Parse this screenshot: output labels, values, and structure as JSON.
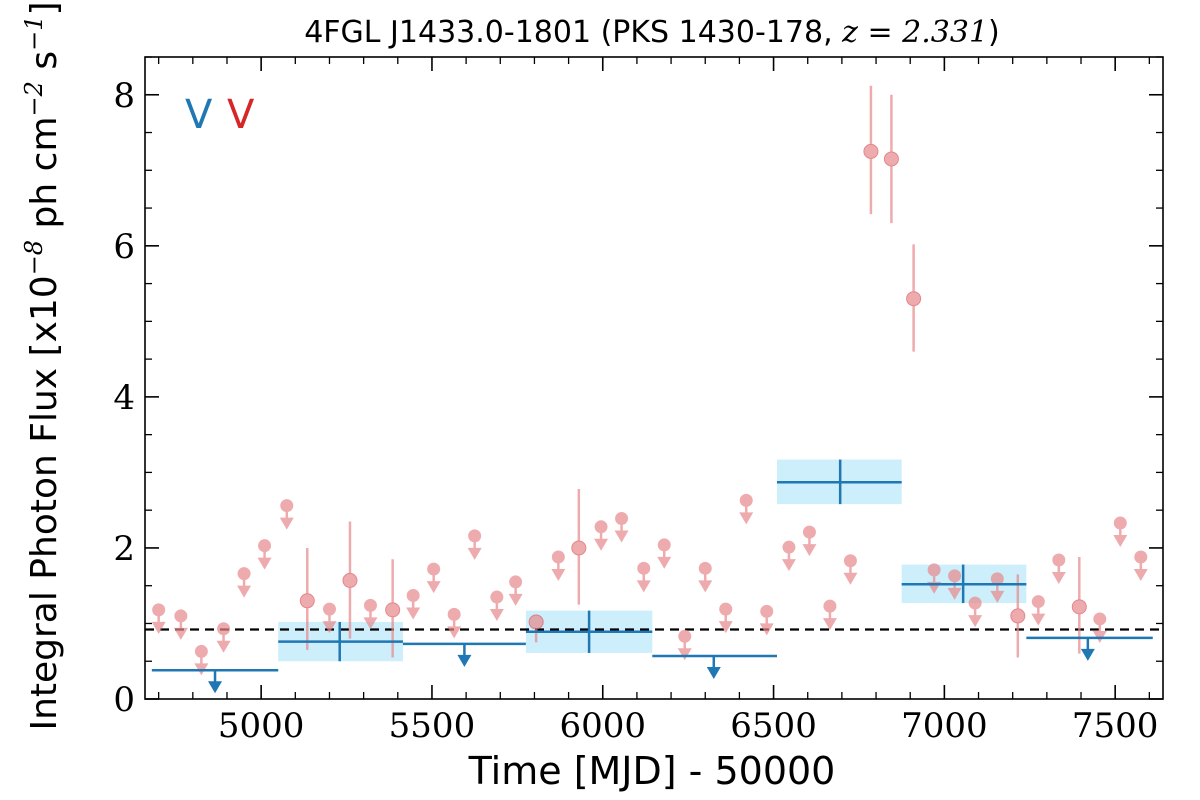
{
  "chart_data": {
    "type": "scatter",
    "title": {
      "prefix": "4FGL J1433.0-1801 (PKS 1430-178, ",
      "z_symbol": "z",
      "z_eq": " = 2.331",
      "suffix": ")"
    },
    "xlabel": "Time [MJD] - 50000",
    "ylabel": {
      "main": "Integral Photon Flux [x10",
      "exp1": "−8",
      "mid": " ph cm",
      "exp2": "−2",
      "mid2": " s",
      "exp3": "−1",
      "end": "]"
    },
    "xlim": [
      4660,
      7640
    ],
    "ylim": [
      0,
      8.5
    ],
    "xticks": [
      5000,
      5500,
      6000,
      6500,
      7000,
      7500
    ],
    "yticks": [
      0,
      2,
      4,
      6,
      8
    ],
    "grid": false,
    "legend": {
      "position": "top-left",
      "entries": [
        {
          "label": "V",
          "color": "#1f77b4"
        },
        {
          "label": "V",
          "color": "#d62728"
        }
      ]
    },
    "colors": {
      "fine": "#e8888c",
      "coarse": "#1f77b4",
      "band": "#cdeefb",
      "baseline": "#000000"
    },
    "baseline": 0.92,
    "fine_bins": {
      "detections": [
        {
          "x": 5135,
          "y": 1.3,
          "lo": 0.65,
          "hi": 2.0
        },
        {
          "x": 5260,
          "y": 1.57,
          "lo": 0.8,
          "hi": 2.35
        },
        {
          "x": 5385,
          "y": 1.18,
          "lo": 0.55,
          "hi": 1.85
        },
        {
          "x": 5805,
          "y": 1.02,
          "lo": 0.75,
          "hi": 1.08
        },
        {
          "x": 5930,
          "y": 2.0,
          "lo": 1.25,
          "hi": 2.78
        },
        {
          "x": 6785,
          "y": 7.25,
          "lo": 6.42,
          "hi": 8.12
        },
        {
          "x": 6845,
          "y": 7.15,
          "lo": 6.3,
          "hi": 8.0
        },
        {
          "x": 6910,
          "y": 5.3,
          "lo": 4.6,
          "hi": 6.02
        },
        {
          "x": 7215,
          "y": 1.1,
          "lo": 0.55,
          "hi": 1.65
        },
        {
          "x": 7395,
          "y": 1.22,
          "lo": 0.6,
          "hi": 1.88
        }
      ],
      "upper_limits": [
        {
          "x": 4700,
          "y": 1.18
        },
        {
          "x": 4765,
          "y": 1.1
        },
        {
          "x": 4825,
          "y": 0.63
        },
        {
          "x": 4890,
          "y": 0.93
        },
        {
          "x": 4950,
          "y": 1.66
        },
        {
          "x": 5010,
          "y": 2.03
        },
        {
          "x": 5075,
          "y": 2.56
        },
        {
          "x": 5200,
          "y": 1.19
        },
        {
          "x": 5320,
          "y": 1.24
        },
        {
          "x": 5445,
          "y": 1.37
        },
        {
          "x": 5505,
          "y": 1.72
        },
        {
          "x": 5565,
          "y": 1.12
        },
        {
          "x": 5625,
          "y": 2.16
        },
        {
          "x": 5690,
          "y": 1.35
        },
        {
          "x": 5745,
          "y": 1.55
        },
        {
          "x": 5870,
          "y": 1.88
        },
        {
          "x": 5995,
          "y": 2.28
        },
        {
          "x": 6055,
          "y": 2.39
        },
        {
          "x": 6120,
          "y": 1.73
        },
        {
          "x": 6180,
          "y": 2.04
        },
        {
          "x": 6240,
          "y": 0.83
        },
        {
          "x": 6300,
          "y": 1.73
        },
        {
          "x": 6360,
          "y": 1.19
        },
        {
          "x": 6420,
          "y": 2.63
        },
        {
          "x": 6480,
          "y": 1.16
        },
        {
          "x": 6545,
          "y": 2.01
        },
        {
          "x": 6605,
          "y": 2.21
        },
        {
          "x": 6665,
          "y": 1.23
        },
        {
          "x": 6725,
          "y": 1.83
        },
        {
          "x": 6970,
          "y": 1.71
        },
        {
          "x": 7030,
          "y": 1.63
        },
        {
          "x": 7090,
          "y": 1.27
        },
        {
          "x": 7155,
          "y": 1.59
        },
        {
          "x": 7275,
          "y": 1.29
        },
        {
          "x": 7335,
          "y": 1.84
        },
        {
          "x": 7455,
          "y": 1.06
        },
        {
          "x": 7515,
          "y": 2.33
        },
        {
          "x": 7575,
          "y": 1.88
        }
      ]
    },
    "coarse_bins": {
      "detections": [
        {
          "x": 5230,
          "xlo": 5050,
          "xhi": 5415,
          "y": 0.76,
          "lo": 0.5,
          "hi": 1.02
        },
        {
          "x": 5960,
          "xlo": 5775,
          "xhi": 6145,
          "y": 0.89,
          "lo": 0.61,
          "hi": 1.17
        },
        {
          "x": 6695,
          "xlo": 6510,
          "xhi": 6875,
          "y": 2.87,
          "lo": 2.58,
          "hi": 3.17
        },
        {
          "x": 7055,
          "xlo": 6875,
          "xhi": 7240,
          "y": 1.52,
          "lo": 1.27,
          "hi": 1.78
        }
      ],
      "upper_limits": [
        {
          "x": 4865,
          "xlo": 4680,
          "xhi": 5050,
          "y": 0.38
        },
        {
          "x": 5595,
          "xlo": 5415,
          "xhi": 5775,
          "y": 0.73
        },
        {
          "x": 6325,
          "xlo": 6145,
          "xhi": 6510,
          "y": 0.57
        },
        {
          "x": 7420,
          "xlo": 7240,
          "xhi": 7610,
          "y": 0.81
        }
      ]
    }
  }
}
